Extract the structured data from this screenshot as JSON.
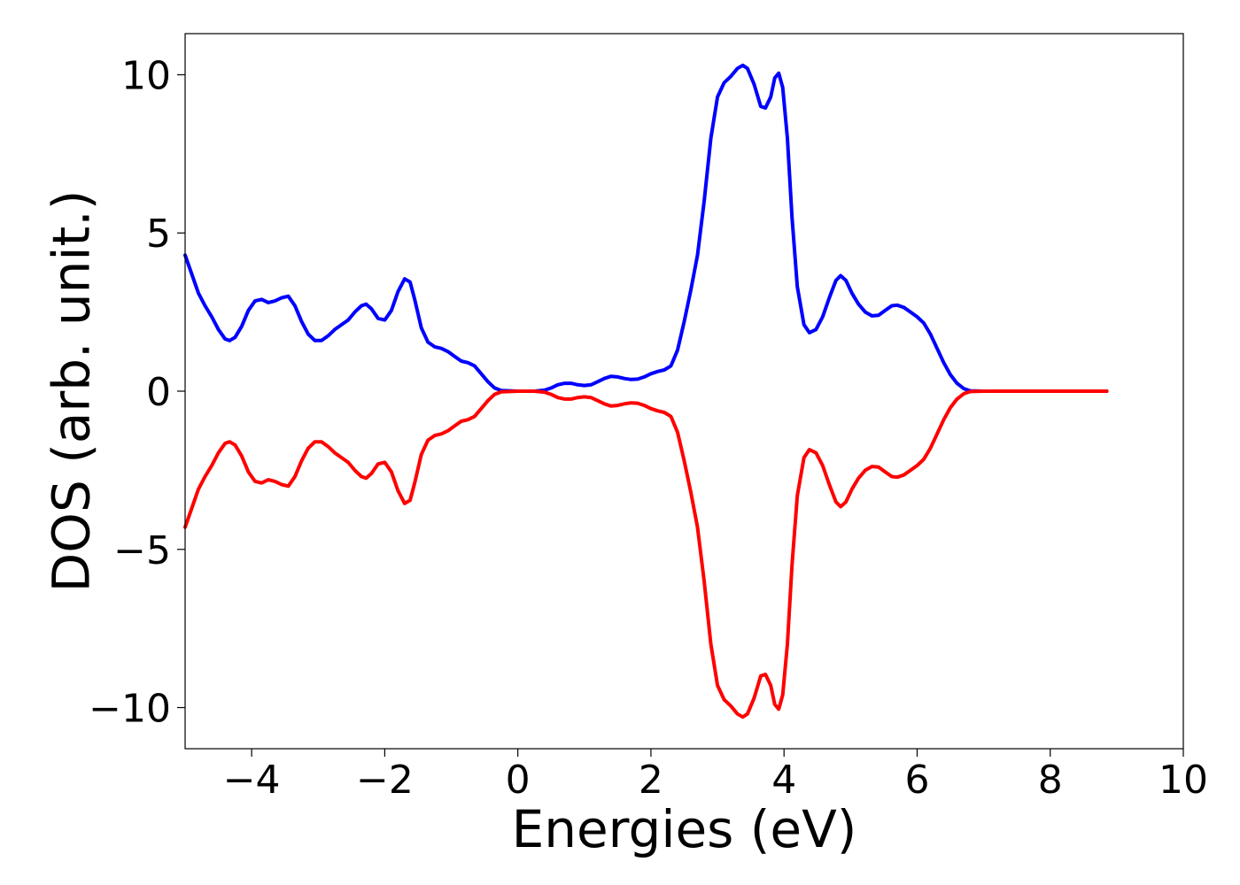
{
  "chart_data": {
    "type": "line",
    "title": "",
    "xlabel": "Energies (eV)",
    "ylabel": "DOS (arb. unit.)",
    "xlim": [
      -5,
      10
    ],
    "ylim": [
      -11.3,
      11.3
    ],
    "xticks": [
      -4,
      -2,
      0,
      2,
      4,
      6,
      8,
      10
    ],
    "yticks": [
      -10,
      -5,
      0,
      5,
      10
    ],
    "xtick_labels": [
      "−4",
      "−2",
      "0",
      "2",
      "4",
      "6",
      "8",
      "10"
    ],
    "ytick_labels": [
      "−10",
      "−5",
      "0",
      "5",
      "10"
    ],
    "grid": false,
    "legend": "none",
    "series": [
      {
        "color": "#0000ff",
        "points": [
          [
            -5.0,
            4.3
          ],
          [
            -4.9,
            3.7
          ],
          [
            -4.8,
            3.1
          ],
          [
            -4.7,
            2.7
          ],
          [
            -4.6,
            2.35
          ],
          [
            -4.5,
            1.95
          ],
          [
            -4.4,
            1.65
          ],
          [
            -4.33,
            1.6
          ],
          [
            -4.25,
            1.7
          ],
          [
            -4.15,
            2.05
          ],
          [
            -4.05,
            2.55
          ],
          [
            -3.95,
            2.85
          ],
          [
            -3.85,
            2.9
          ],
          [
            -3.75,
            2.8
          ],
          [
            -3.65,
            2.85
          ],
          [
            -3.55,
            2.95
          ],
          [
            -3.45,
            3.0
          ],
          [
            -3.35,
            2.7
          ],
          [
            -3.25,
            2.2
          ],
          [
            -3.15,
            1.8
          ],
          [
            -3.05,
            1.6
          ],
          [
            -2.95,
            1.6
          ],
          [
            -2.85,
            1.75
          ],
          [
            -2.75,
            1.95
          ],
          [
            -2.65,
            2.1
          ],
          [
            -2.55,
            2.25
          ],
          [
            -2.45,
            2.5
          ],
          [
            -2.35,
            2.7
          ],
          [
            -2.28,
            2.75
          ],
          [
            -2.2,
            2.6
          ],
          [
            -2.1,
            2.3
          ],
          [
            -2.0,
            2.25
          ],
          [
            -1.9,
            2.55
          ],
          [
            -1.8,
            3.15
          ],
          [
            -1.7,
            3.55
          ],
          [
            -1.62,
            3.45
          ],
          [
            -1.55,
            2.9
          ],
          [
            -1.45,
            2.0
          ],
          [
            -1.35,
            1.55
          ],
          [
            -1.25,
            1.4
          ],
          [
            -1.15,
            1.35
          ],
          [
            -1.05,
            1.25
          ],
          [
            -0.95,
            1.1
          ],
          [
            -0.85,
            0.95
          ],
          [
            -0.75,
            0.9
          ],
          [
            -0.65,
            0.8
          ],
          [
            -0.55,
            0.55
          ],
          [
            -0.45,
            0.3
          ],
          [
            -0.35,
            0.1
          ],
          [
            -0.25,
            0.02
          ],
          [
            0.0,
            0.0
          ],
          [
            0.25,
            0.0
          ],
          [
            0.4,
            0.03
          ],
          [
            0.5,
            0.1
          ],
          [
            0.6,
            0.2
          ],
          [
            0.7,
            0.25
          ],
          [
            0.8,
            0.25
          ],
          [
            0.9,
            0.2
          ],
          [
            1.0,
            0.18
          ],
          [
            1.1,
            0.2
          ],
          [
            1.2,
            0.3
          ],
          [
            1.3,
            0.4
          ],
          [
            1.4,
            0.47
          ],
          [
            1.5,
            0.45
          ],
          [
            1.6,
            0.4
          ],
          [
            1.7,
            0.37
          ],
          [
            1.8,
            0.38
          ],
          [
            1.9,
            0.45
          ],
          [
            2.0,
            0.55
          ],
          [
            2.1,
            0.62
          ],
          [
            2.2,
            0.67
          ],
          [
            2.3,
            0.8
          ],
          [
            2.4,
            1.3
          ],
          [
            2.5,
            2.2
          ],
          [
            2.6,
            3.2
          ],
          [
            2.7,
            4.3
          ],
          [
            2.8,
            6.0
          ],
          [
            2.9,
            8.0
          ],
          [
            3.0,
            9.3
          ],
          [
            3.1,
            9.75
          ],
          [
            3.2,
            9.95
          ],
          [
            3.3,
            10.2
          ],
          [
            3.38,
            10.3
          ],
          [
            3.45,
            10.2
          ],
          [
            3.55,
            9.7
          ],
          [
            3.65,
            9.0
          ],
          [
            3.72,
            8.95
          ],
          [
            3.8,
            9.3
          ],
          [
            3.86,
            9.9
          ],
          [
            3.92,
            10.05
          ],
          [
            3.98,
            9.6
          ],
          [
            4.05,
            8.0
          ],
          [
            4.12,
            5.5
          ],
          [
            4.2,
            3.3
          ],
          [
            4.3,
            2.1
          ],
          [
            4.38,
            1.85
          ],
          [
            4.48,
            1.95
          ],
          [
            4.58,
            2.35
          ],
          [
            4.68,
            2.95
          ],
          [
            4.78,
            3.5
          ],
          [
            4.85,
            3.65
          ],
          [
            4.93,
            3.5
          ],
          [
            5.02,
            3.1
          ],
          [
            5.12,
            2.75
          ],
          [
            5.22,
            2.5
          ],
          [
            5.32,
            2.38
          ],
          [
            5.42,
            2.4
          ],
          [
            5.52,
            2.55
          ],
          [
            5.62,
            2.7
          ],
          [
            5.7,
            2.72
          ],
          [
            5.8,
            2.65
          ],
          [
            5.9,
            2.5
          ],
          [
            6.0,
            2.35
          ],
          [
            6.1,
            2.15
          ],
          [
            6.2,
            1.8
          ],
          [
            6.3,
            1.35
          ],
          [
            6.4,
            0.9
          ],
          [
            6.5,
            0.52
          ],
          [
            6.6,
            0.25
          ],
          [
            6.7,
            0.08
          ],
          [
            6.8,
            0.01
          ],
          [
            7.0,
            0.0
          ],
          [
            8.0,
            0.0
          ],
          [
            8.85,
            0.0
          ]
        ]
      },
      {
        "color": "#ff0000",
        "points": [
          [
            -5.0,
            -4.3
          ],
          [
            -4.9,
            -3.7
          ],
          [
            -4.8,
            -3.1
          ],
          [
            -4.7,
            -2.7
          ],
          [
            -4.6,
            -2.35
          ],
          [
            -4.5,
            -1.95
          ],
          [
            -4.4,
            -1.65
          ],
          [
            -4.33,
            -1.6
          ],
          [
            -4.25,
            -1.7
          ],
          [
            -4.15,
            -2.05
          ],
          [
            -4.05,
            -2.55
          ],
          [
            -3.95,
            -2.85
          ],
          [
            -3.85,
            -2.9
          ],
          [
            -3.75,
            -2.8
          ],
          [
            -3.65,
            -2.85
          ],
          [
            -3.55,
            -2.95
          ],
          [
            -3.45,
            -3.0
          ],
          [
            -3.35,
            -2.7
          ],
          [
            -3.25,
            -2.2
          ],
          [
            -3.15,
            -1.8
          ],
          [
            -3.05,
            -1.6
          ],
          [
            -2.95,
            -1.6
          ],
          [
            -2.85,
            -1.75
          ],
          [
            -2.75,
            -1.95
          ],
          [
            -2.65,
            -2.1
          ],
          [
            -2.55,
            -2.25
          ],
          [
            -2.45,
            -2.5
          ],
          [
            -2.35,
            -2.7
          ],
          [
            -2.28,
            -2.75
          ],
          [
            -2.2,
            -2.6
          ],
          [
            -2.1,
            -2.3
          ],
          [
            -2.0,
            -2.25
          ],
          [
            -1.9,
            -2.55
          ],
          [
            -1.8,
            -3.15
          ],
          [
            -1.7,
            -3.55
          ],
          [
            -1.62,
            -3.45
          ],
          [
            -1.55,
            -2.9
          ],
          [
            -1.45,
            -2.0
          ],
          [
            -1.35,
            -1.55
          ],
          [
            -1.25,
            -1.4
          ],
          [
            -1.15,
            -1.35
          ],
          [
            -1.05,
            -1.25
          ],
          [
            -0.95,
            -1.1
          ],
          [
            -0.85,
            -0.95
          ],
          [
            -0.75,
            -0.9
          ],
          [
            -0.65,
            -0.8
          ],
          [
            -0.55,
            -0.55
          ],
          [
            -0.45,
            -0.3
          ],
          [
            -0.35,
            -0.1
          ],
          [
            -0.25,
            -0.02
          ],
          [
            0.0,
            0.0
          ],
          [
            0.25,
            0.0
          ],
          [
            0.4,
            -0.03
          ],
          [
            0.5,
            -0.1
          ],
          [
            0.6,
            -0.2
          ],
          [
            0.7,
            -0.25
          ],
          [
            0.8,
            -0.25
          ],
          [
            0.9,
            -0.2
          ],
          [
            1.0,
            -0.18
          ],
          [
            1.1,
            -0.2
          ],
          [
            1.2,
            -0.3
          ],
          [
            1.3,
            -0.4
          ],
          [
            1.4,
            -0.47
          ],
          [
            1.5,
            -0.45
          ],
          [
            1.6,
            -0.4
          ],
          [
            1.7,
            -0.37
          ],
          [
            1.8,
            -0.38
          ],
          [
            1.9,
            -0.45
          ],
          [
            2.0,
            -0.55
          ],
          [
            2.1,
            -0.62
          ],
          [
            2.2,
            -0.67
          ],
          [
            2.3,
            -0.8
          ],
          [
            2.4,
            -1.3
          ],
          [
            2.5,
            -2.2
          ],
          [
            2.6,
            -3.2
          ],
          [
            2.7,
            -4.3
          ],
          [
            2.8,
            -6.0
          ],
          [
            2.9,
            -8.0
          ],
          [
            3.0,
            -9.3
          ],
          [
            3.1,
            -9.75
          ],
          [
            3.2,
            -9.95
          ],
          [
            3.3,
            -10.2
          ],
          [
            3.38,
            -10.3
          ],
          [
            3.45,
            -10.2
          ],
          [
            3.55,
            -9.7
          ],
          [
            3.65,
            -9.0
          ],
          [
            3.72,
            -8.95
          ],
          [
            3.8,
            -9.3
          ],
          [
            3.86,
            -9.9
          ],
          [
            3.92,
            -10.05
          ],
          [
            3.98,
            -9.6
          ],
          [
            4.05,
            -8.0
          ],
          [
            4.12,
            -5.5
          ],
          [
            4.2,
            -3.3
          ],
          [
            4.3,
            -2.1
          ],
          [
            4.38,
            -1.85
          ],
          [
            4.48,
            -1.95
          ],
          [
            4.58,
            -2.35
          ],
          [
            4.68,
            -2.95
          ],
          [
            4.78,
            -3.5
          ],
          [
            4.85,
            -3.65
          ],
          [
            4.93,
            -3.5
          ],
          [
            5.02,
            -3.1
          ],
          [
            5.12,
            -2.75
          ],
          [
            5.22,
            -2.5
          ],
          [
            5.32,
            -2.38
          ],
          [
            5.42,
            -2.4
          ],
          [
            5.52,
            -2.55
          ],
          [
            5.62,
            -2.7
          ],
          [
            5.7,
            -2.72
          ],
          [
            5.8,
            -2.65
          ],
          [
            5.9,
            -2.5
          ],
          [
            6.0,
            -2.35
          ],
          [
            6.1,
            -2.15
          ],
          [
            6.2,
            -1.8
          ],
          [
            6.3,
            -1.35
          ],
          [
            6.4,
            -0.9
          ],
          [
            6.5,
            -0.52
          ],
          [
            6.6,
            -0.25
          ],
          [
            6.7,
            -0.08
          ],
          [
            6.8,
            -0.01
          ],
          [
            7.0,
            0.0
          ],
          [
            8.0,
            0.0
          ],
          [
            8.85,
            0.0
          ]
        ]
      }
    ]
  }
}
